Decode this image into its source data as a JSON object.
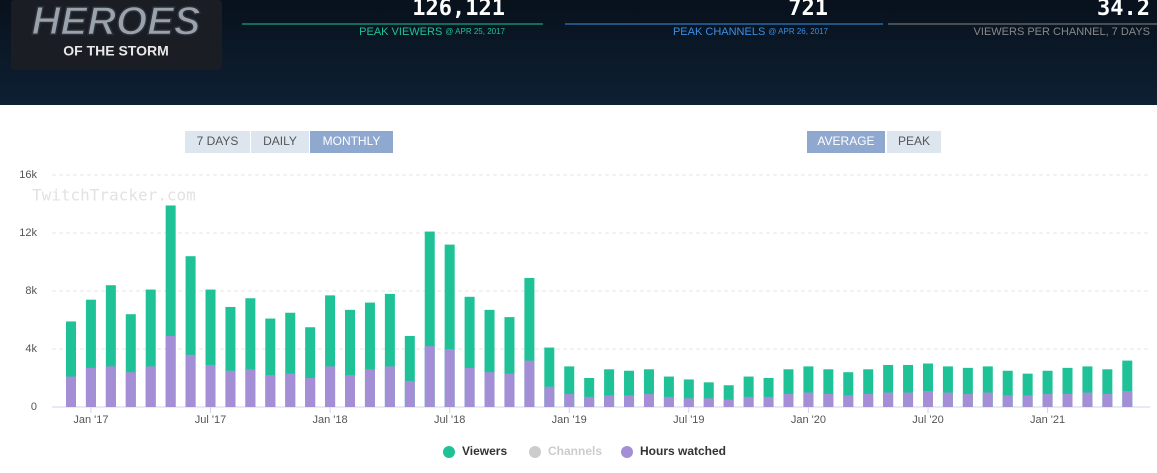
{
  "header": {
    "logo_title": "HEROES",
    "logo_subtitle": "OF THE STORM",
    "stats": [
      {
        "value": "126,121",
        "label": "PEAK VIEWERS",
        "date": "@ APR 25, 2017",
        "color": "#1ec296"
      },
      {
        "value": "721",
        "label": "PEAK CHANNELS",
        "date": "@ APR 26, 2017",
        "color": "#3a8ee6"
      },
      {
        "value": "34.2",
        "label": "VIEWERS PER CHANNEL, 7 DAYS",
        "date": null,
        "color": "#888888"
      }
    ]
  },
  "range_buttons": [
    {
      "label": "7 DAYS",
      "active": false
    },
    {
      "label": "DAILY",
      "active": false
    },
    {
      "label": "MONTHLY",
      "active": true
    }
  ],
  "mode_buttons": [
    {
      "label": "AVERAGE",
      "active": true
    },
    {
      "label": "PEAK",
      "active": false
    }
  ],
  "chart_data": {
    "type": "bar",
    "watermark": "TwitchTracker.com",
    "categories": [
      null,
      "Jan '17",
      null,
      null,
      null,
      null,
      null,
      "Jul '17",
      null,
      null,
      null,
      null,
      null,
      "Jan '18",
      null,
      null,
      null,
      null,
      null,
      "Jul '18",
      null,
      null,
      null,
      null,
      null,
      "Jan '19",
      null,
      null,
      null,
      null,
      null,
      "Jul '19",
      null,
      null,
      null,
      null,
      null,
      "Jan '20",
      null,
      null,
      null,
      null,
      null,
      "Jul '20",
      null,
      null,
      null,
      null,
      null,
      "Jan '21",
      null,
      null,
      null,
      null
    ],
    "series": [
      {
        "name": "Viewers",
        "color": "#1ec296",
        "values": [
          5900,
          7400,
          8400,
          6400,
          8100,
          13900,
          10400,
          8100,
          6900,
          7500,
          6100,
          6500,
          5500,
          7700,
          6700,
          7200,
          7800,
          4900,
          12100,
          11200,
          7600,
          6700,
          6200,
          8900,
          4100,
          2800,
          2000,
          2600,
          2500,
          2600,
          2100,
          1900,
          1700,
          1500,
          2100,
          2000,
          2600,
          2800,
          2600,
          2400,
          2600,
          2900,
          2900,
          3000,
          2800,
          2700,
          2800,
          2500,
          2300,
          2500,
          2700,
          2800,
          2600,
          3200
        ]
      },
      {
        "name": "Channels",
        "color": "#cccccc"
      },
      {
        "name": "Hours watched",
        "color": "#a48fd6",
        "values": [
          2100,
          2700,
          2800,
          2400,
          2800,
          4900,
          3600,
          2900,
          2500,
          2600,
          2200,
          2300,
          2000,
          2800,
          2200,
          2600,
          2800,
          1800,
          4200,
          4000,
          2700,
          2400,
          2300,
          3200,
          1400,
          900,
          700,
          800,
          800,
          900,
          700,
          600,
          600,
          500,
          700,
          700,
          900,
          1000,
          900,
          800,
          900,
          1000,
          1000,
          1100,
          1000,
          900,
          1000,
          800,
          800,
          900,
          900,
          1000,
          900,
          1100
        ]
      }
    ],
    "ylim": [
      0,
      16000
    ],
    "yticks": [
      0,
      {
        "value": 4000,
        "label": "4k"
      },
      {
        "value": 8000,
        "label": "8k"
      },
      {
        "value": 12000,
        "label": "12k"
      },
      {
        "value": 16000,
        "label": "16k"
      }
    ],
    "grid": true,
    "legend": "bottom"
  }
}
